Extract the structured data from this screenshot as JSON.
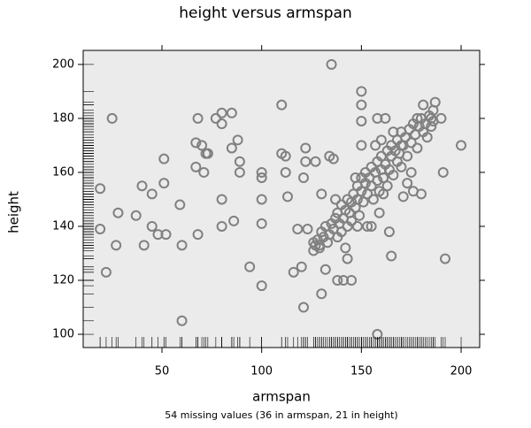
{
  "chart_data": {
    "type": "scatter",
    "title": "height versus armspan",
    "x_label": "armspan",
    "y_label": "height",
    "note": "54 missing values (36 in armspan, 21 in height)",
    "color": "#808080",
    "rug": true,
    "xlim": [
      10.5,
      209.3
    ],
    "ylim": [
      95.1,
      205.2
    ],
    "xticks": [
      50,
      100,
      150,
      200
    ],
    "yticks": [
      100,
      120,
      140,
      160,
      180,
      200
    ],
    "x": [
      19,
      19,
      22,
      25,
      27,
      28,
      37,
      40,
      41,
      45,
      45,
      48,
      51,
      51,
      52,
      59,
      60,
      60,
      67,
      67,
      68,
      68,
      70,
      71,
      72,
      73,
      77,
      80,
      80,
      80,
      80,
      85,
      85,
      86,
      88,
      89,
      89,
      94,
      100,
      100,
      100,
      100,
      100,
      110,
      110,
      112,
      112,
      113,
      116,
      118,
      120,
      121,
      121,
      122,
      122,
      123,
      126,
      127,
      129,
      130,
      130,
      132,
      134,
      135,
      136,
      137,
      138,
      141,
      143,
      145,
      148,
      150,
      150,
      150,
      150,
      155,
      158,
      158,
      159,
      161,
      162,
      164,
      165,
      170,
      171,
      173,
      175,
      176,
      180,
      185,
      187,
      190,
      191,
      192,
      200,
      178,
      181,
      186,
      126,
      127,
      128,
      129,
      130,
      131,
      132,
      133,
      134,
      135,
      136,
      137,
      138,
      138,
      139,
      140,
      140,
      141,
      142,
      143,
      143,
      144,
      145,
      145,
      146,
      147,
      148,
      148,
      149,
      150,
      150,
      151,
      152,
      152,
      153,
      154,
      155,
      155,
      156,
      157,
      158,
      158,
      159,
      160,
      160,
      161,
      162,
      163,
      163,
      164,
      165,
      165,
      166,
      167,
      168,
      168,
      169,
      170,
      170,
      171,
      172,
      173,
      174,
      175,
      176,
      177,
      178,
      179,
      180,
      181,
      182,
      183,
      184,
      185,
      186,
      157,
      153,
      147,
      142,
      160,
      166
    ],
    "values": [
      154,
      139,
      123,
      180,
      133,
      145,
      144,
      155,
      133,
      152,
      140,
      137,
      165,
      156,
      137,
      148,
      133,
      105,
      171,
      162,
      180,
      137,
      170,
      160,
      167,
      167,
      180,
      182,
      178,
      150,
      140,
      182,
      169,
      142,
      172,
      164,
      160,
      125,
      160,
      158,
      150,
      141,
      118,
      167,
      185,
      166,
      160,
      151,
      123,
      139,
      125,
      110,
      158,
      169,
      164,
      139,
      134,
      164,
      133,
      115,
      152,
      124,
      166,
      200,
      165,
      150,
      120,
      120,
      128,
      120,
      140,
      185,
      190,
      179,
      170,
      140,
      100,
      180,
      145,
      152,
      180,
      138,
      129,
      170,
      151,
      156,
      160,
      153,
      152,
      180,
      186,
      180,
      160,
      128,
      170,
      180,
      185,
      183,
      131,
      133,
      135,
      132,
      138,
      136,
      140,
      134,
      137,
      141,
      139,
      143,
      136,
      145,
      141,
      148,
      138,
      143,
      146,
      140,
      150,
      145,
      149,
      142,
      152,
      147,
      155,
      150,
      144,
      153,
      158,
      149,
      156,
      160,
      152,
      158,
      155,
      162,
      150,
      160,
      157,
      164,
      153,
      161,
      166,
      158,
      163,
      155,
      168,
      161,
      166,
      170,
      159,
      168,
      164,
      172,
      167,
      175,
      162,
      170,
      173,
      166,
      176,
      171,
      178,
      174,
      169,
      177,
      180,
      175,
      178,
      173,
      181,
      177,
      179,
      170,
      140,
      158,
      132,
      172,
      175
    ]
  }
}
